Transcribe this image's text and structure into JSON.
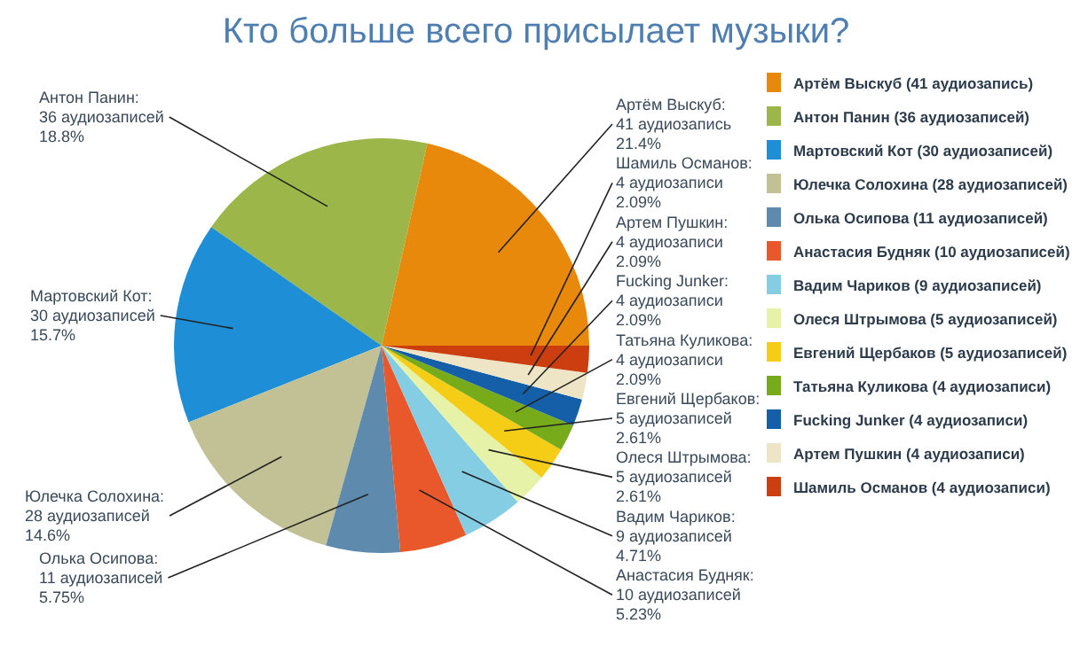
{
  "chart_data": {
    "type": "pie",
    "title": "Кто больше всего присылает музыки?",
    "categories": [
      "Артём Выскуб (41 аудиозапись)",
      "Антон Панин (36 аудиозаписей)",
      "Мартовский Кот (30 аудиозаписей)",
      "Юлечка Солохина (28 аудиозаписей)",
      "Олька Осипова (11 аудиозаписей)",
      "Анастасия Будняк (10 аудиозаписей)",
      "Вадим Чариков (9 аудиозаписей)",
      "Олеся Штрымова (5 аудиозаписей)",
      "Евгений Щербаков (5 аудиозаписей)",
      "Татьяна Куликова (4 аудиозаписи)",
      "Fucking Junker (4 аудиозаписи)",
      "Артем Пушкин (4 аудиозаписи)",
      "Шамиль Османов (4 аудиозаписи)"
    ],
    "values": [
      41,
      36,
      30,
      28,
      11,
      10,
      9,
      5,
      5,
      4,
      4,
      4,
      4
    ],
    "colors": [
      "#e8890c",
      "#9cb64a",
      "#1e8fd6",
      "#c2c196",
      "#5e8aad",
      "#e9582a",
      "#84cde3",
      "#e6f2a8",
      "#f6cd16",
      "#78ab1a",
      "#155fa8",
      "#ede5c5",
      "#cc3d10"
    ],
    "value_labels": [
      "Артём Выскуб:\n41 аудиозапись\n21.4%",
      "Антон Панин:\n36 аудиозаписей\n18.8%",
      "Мартовский Кот:\n30 аудиозаписей\n15.7%",
      "Юлечка Солохина:\n28 аудиозаписей\n14.6%",
      "Олька Осипова:\n11 аудиозаписей\n5.75%",
      "Анастасия Будняк:\n10 аудиозаписей\n5.23%",
      "Вадим Чариков:\n9 аудиозаписей\n4.71%",
      "Олеся Штрымова:\n5 аудиозаписей\n2.61%",
      "Евгений Щербаков:\n5 аудиозаписей\n2.61%",
      "Татьяна Куликова:\n4 аудиозаписи\n2.09%",
      "Fucking Junker:\n4 аудиозаписи\n2.09%",
      "Артем Пушкин:\n4 аудиозаписи\n2.09%",
      "Шамиль Османов:\n4 аудиозаписи\n2.09%"
    ],
    "legend": "right"
  }
}
